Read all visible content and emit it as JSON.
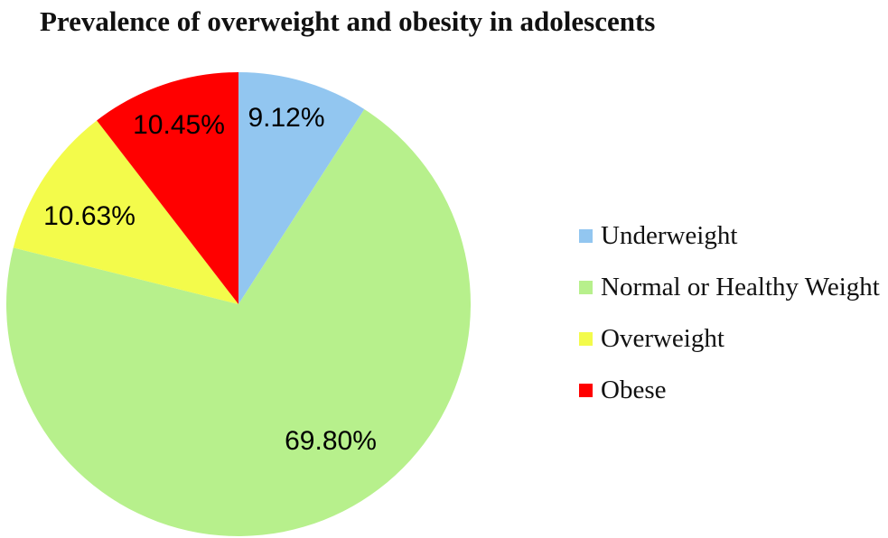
{
  "title": "Prevalence of overweight and obesity in adolescents",
  "chart_data": {
    "type": "pie",
    "title": "Prevalence of overweight and obesity in adolescents",
    "start_angle_deg": 0,
    "direction": "clockwise",
    "legend_position": "right",
    "background_color": "#ffffff",
    "slices": [
      {
        "label": "Underweight",
        "value": 9.12,
        "display": "9.12%",
        "color": "#92C6F0"
      },
      {
        "label": "Normal or Healthy Weight",
        "value": 69.8,
        "display": "69.80%",
        "color": "#B7F08C"
      },
      {
        "label": "Overweight",
        "value": 10.63,
        "display": "10.63%",
        "color": "#F3FB4B"
      },
      {
        "label": "Obese",
        "value": 10.45,
        "display": "10.45%",
        "color": "#FF0000"
      }
    ]
  }
}
